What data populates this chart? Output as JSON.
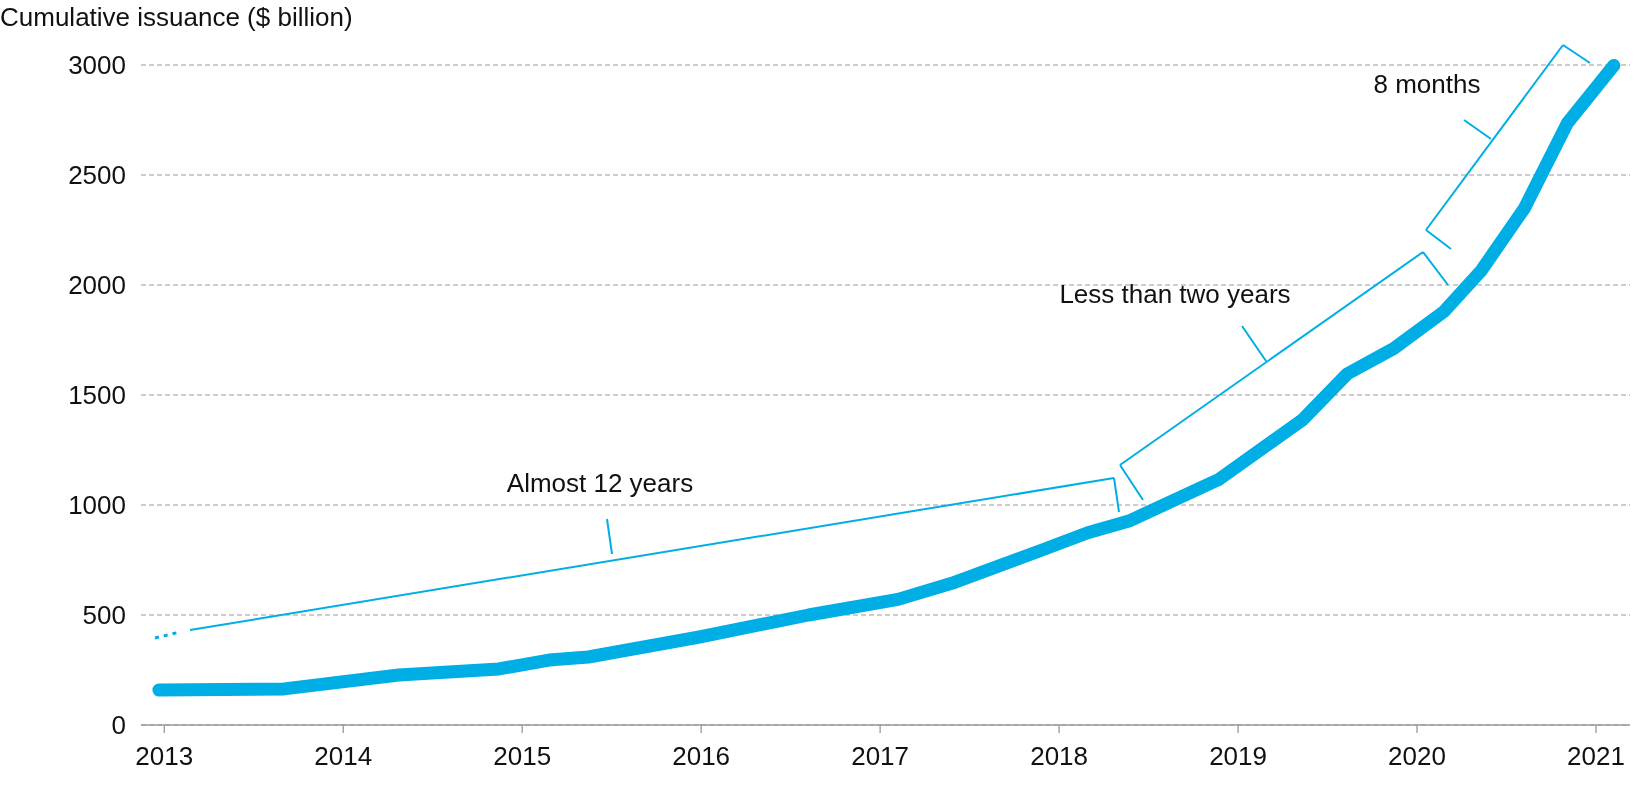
{
  "chart_data": {
    "type": "line",
    "ylabel": "Cumulative issuance ($ billion)",
    "x": [
      2012.97,
      2013.67,
      2014.31,
      2014.87,
      2015.15,
      2015.37,
      2015.99,
      2016.6,
      2017.1,
      2017.4,
      2017.89,
      2018.16,
      2018.39,
      2018.89,
      2019.36,
      2019.61,
      2019.87,
      2020.15,
      2020.36,
      2020.6,
      2020.84,
      2021.1
    ],
    "series": [
      {
        "color": "#00aee6",
        "values": [
          159,
          164,
          227,
          255,
          295,
          309,
          400,
          500,
          571,
          644,
          791,
          874,
          927,
          1115,
          1387,
          1596,
          1711,
          1879,
          2067,
          2349,
          2736,
          2998
        ]
      }
    ],
    "xlim": [
      2012.87,
      2021.19
    ],
    "xticks": [
      2013,
      2014,
      2015,
      2016,
      2017,
      2018,
      2019,
      2020,
      2021
    ],
    "ylim": [
      0,
      3000
    ],
    "yticks": [
      0,
      500,
      1000,
      1500,
      2000,
      2500,
      3000
    ],
    "grid": "y",
    "annotations": [
      "Almost 12 years",
      "Less than two years",
      "8 months"
    ]
  }
}
